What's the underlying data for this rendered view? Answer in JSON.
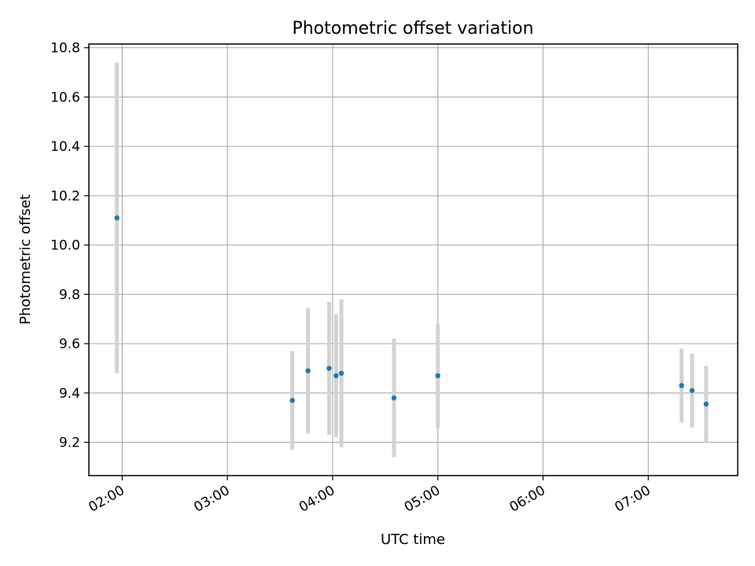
{
  "chart_data": {
    "type": "scatter",
    "title": "Photometric offset variation",
    "xlabel": "UTC time",
    "ylabel": "Photometric offset",
    "x_tick_labels": [
      "02:00",
      "03:00",
      "04:00",
      "05:00",
      "06:00",
      "07:00"
    ],
    "x_ticks": [
      "02:00",
      "03:00",
      "04:00",
      "05:00",
      "06:00",
      "07:00"
    ],
    "y_tick_labels": [
      "9.2",
      "9.4",
      "9.6",
      "9.8",
      "10.0",
      "10.2",
      "10.4",
      "10.6",
      "10.8"
    ],
    "y_ticks": [
      9.2,
      9.4,
      9.6,
      9.8,
      10.0,
      10.2,
      10.4,
      10.6,
      10.8
    ],
    "xlim": [
      "01:41",
      "07:51"
    ],
    "ylim": [
      9.065,
      10.815
    ],
    "grid": true,
    "x_tick_rotation": 30,
    "errorbar_color": "#d3d3d3",
    "marker_color": "#1f77b4",
    "points": [
      {
        "x": "01:57",
        "y": 10.11,
        "err": 0.63
      },
      {
        "x": "03:37",
        "y": 9.37,
        "err": 0.2
      },
      {
        "x": "03:46",
        "y": 9.49,
        "err": 0.255
      },
      {
        "x": "03:58",
        "y": 9.5,
        "err": 0.27
      },
      {
        "x": "04:02",
        "y": 9.47,
        "err": 0.25
      },
      {
        "x": "04:05",
        "y": 9.48,
        "err": 0.3
      },
      {
        "x": "04:35",
        "y": 9.38,
        "err": 0.24
      },
      {
        "x": "05:00",
        "y": 9.47,
        "err": 0.21
      },
      {
        "x": "07:19",
        "y": 9.43,
        "err": 0.15
      },
      {
        "x": "07:25",
        "y": 9.41,
        "err": 0.15
      },
      {
        "x": "07:33",
        "y": 9.355,
        "err": 0.155
      }
    ]
  }
}
